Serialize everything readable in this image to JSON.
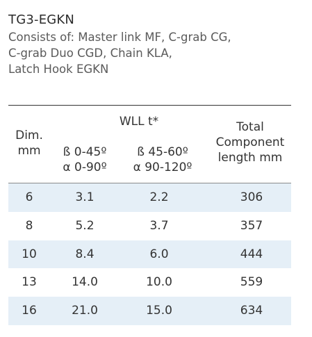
{
  "product": {
    "code": "TG3-EGKN",
    "description_lines": [
      "Consists of: Master link MF, C-grab CG,",
      "C-grab Duo CGD,  Chain KLA,",
      "Latch Hook EGKN"
    ]
  },
  "table": {
    "headers": {
      "dim": [
        "Dim.",
        "mm"
      ],
      "wll_group": "WLL t*",
      "wll_1": [
        "ß 0-45º",
        "α 0-90º"
      ],
      "wll_2": [
        "ß 45-60º",
        "α 90-120º"
      ],
      "total": [
        "Total",
        "Component",
        "length mm"
      ]
    },
    "rows": [
      {
        "dim": "6",
        "wll_1": "3.1",
        "wll_2": "2.2",
        "total": "306"
      },
      {
        "dim": "8",
        "wll_1": "5.2",
        "wll_2": "3.7",
        "total": "357"
      },
      {
        "dim": "10",
        "wll_1": "8.4",
        "wll_2": "6.0",
        "total": "444"
      },
      {
        "dim": "13",
        "wll_1": "14.0",
        "wll_2": "10.0",
        "total": "559"
      },
      {
        "dim": "16",
        "wll_1": "21.0",
        "wll_2": "15.0",
        "total": "634"
      }
    ]
  },
  "colors": {
    "row_shade": "#e5eff7",
    "text": "#333333"
  }
}
